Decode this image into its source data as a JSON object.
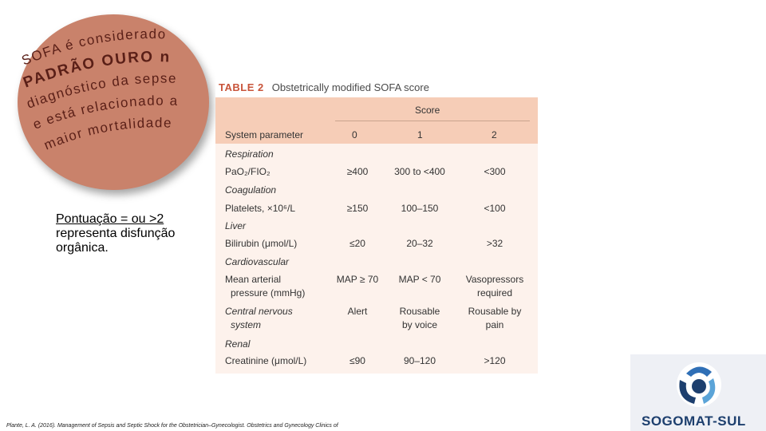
{
  "badge": {
    "lines": [
      "SOFA é considerado",
      "PADRÃO OURO no",
      "diagnóstico da sepse",
      "e está relacionado a",
      "maior mortalidade"
    ],
    "color": "#c9826b"
  },
  "note": {
    "underlined": "Pontuação = ou >2",
    "text": "representa disfunção orgânica."
  },
  "table": {
    "label": "TABLE 2",
    "caption": "Obstetrically modified SOFA score",
    "score_header": "Score",
    "columns": [
      "System parameter",
      "0",
      "1",
      "2"
    ],
    "rows": [
      {
        "type": "category",
        "label": "Respiration"
      },
      {
        "type": "data",
        "label": "PaO₂/FIO₂",
        "v0": "≥400",
        "v1": "300 to <400",
        "v2": "<300"
      },
      {
        "type": "category",
        "label": "Coagulation"
      },
      {
        "type": "data",
        "label": "Platelets, ×10⁶/L",
        "v0": "≥150",
        "v1": "100–150",
        "v2": "<100"
      },
      {
        "type": "category",
        "label": "Liver"
      },
      {
        "type": "data",
        "label": "Bilirubin (μmol/L)",
        "v0": "≤20",
        "v1": "20–32",
        "v2": ">32"
      },
      {
        "type": "category",
        "label": "Cardiovascular"
      },
      {
        "type": "data2",
        "label": "Mean arterial",
        "label2": "pressure (mmHg)",
        "v0": "MAP ≥ 70",
        "v1": "MAP < 70",
        "v2": "Vasopressors",
        "v2b": "required"
      },
      {
        "type": "data2",
        "label": "Central nervous",
        "label2": "system",
        "v0": "Alert",
        "v1": "Rousable",
        "v1b": "by voice",
        "v2": "Rousable by",
        "v2b": "pain",
        "cat": true
      },
      {
        "type": "category",
        "label": "Renal"
      },
      {
        "type": "data",
        "label": "Creatinine (μmol/L)",
        "v0": "≤90",
        "v1": "90–120",
        "v2": ">120"
      }
    ],
    "header_color": "#f6cdb7",
    "body_color": "#fdf2ec",
    "accent": "#c8543a"
  },
  "footer": "Plante, L. A. (2016). Management of Sepsis and Septic Shock for the Obstetrician–Gynecologist. Obstetrics and Gynecology Clinics of",
  "logo": {
    "text": "SOGOMAT-SUL",
    "icon": "sogomat-logo-icon"
  }
}
